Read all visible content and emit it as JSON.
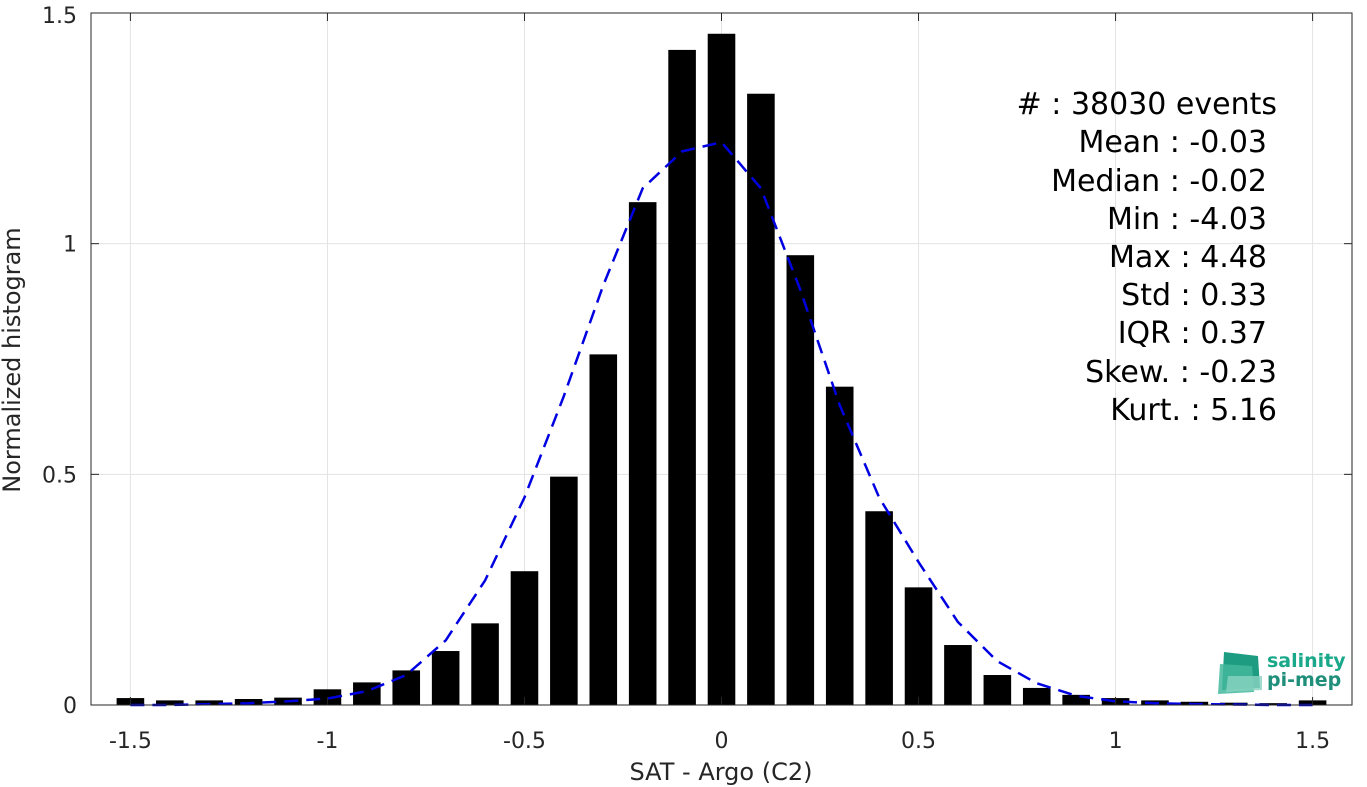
{
  "chart_data": {
    "type": "bar",
    "xlabel": "SAT - Argo (C2)",
    "ylabel": "Normalized histogram",
    "xlim": [
      -1.6,
      1.6
    ],
    "ylim": [
      0,
      1.5
    ],
    "grid": true,
    "xticks": [
      -1.5,
      -1,
      -0.5,
      0,
      0.5,
      1,
      1.5
    ],
    "xtick_labels": [
      "-1.5",
      "-1",
      "-0.5",
      "0",
      "0.5",
      "1",
      "1.5"
    ],
    "yticks": [
      0,
      0.5,
      1,
      1.5
    ],
    "ytick_labels": [
      "0",
      "0.5",
      "1",
      "1.5"
    ],
    "bar_color": "#000000",
    "bar_width": 0.07,
    "bins": [
      -1.5,
      -1.4,
      -1.3,
      -1.2,
      -1.1,
      -1.0,
      -0.9,
      -0.8,
      -0.7,
      -0.6,
      -0.5,
      -0.4,
      -0.3,
      -0.2,
      -0.1,
      0.0,
      0.1,
      0.2,
      0.3,
      0.4,
      0.5,
      0.6,
      0.7,
      0.8,
      0.9,
      1.0,
      1.1,
      1.2,
      1.3,
      1.4,
      1.5
    ],
    "values": [
      0.015,
      0.01,
      0.01,
      0.013,
      0.016,
      0.034,
      0.049,
      0.075,
      0.117,
      0.177,
      0.29,
      0.495,
      0.76,
      1.09,
      1.42,
      1.455,
      1.325,
      0.975,
      0.69,
      0.42,
      0.255,
      0.13,
      0.065,
      0.037,
      0.022,
      0.015,
      0.01,
      0.007,
      0.005,
      0.004,
      0.01
    ],
    "fit": {
      "color": "#0000e0",
      "style": "dashed",
      "x": [
        -1.5,
        -1.4,
        -1.3,
        -1.2,
        -1.1,
        -1.0,
        -0.9,
        -0.8,
        -0.7,
        -0.6,
        -0.5,
        -0.4,
        -0.3,
        -0.2,
        -0.1,
        0.0,
        0.1,
        0.2,
        0.3,
        0.4,
        0.5,
        0.6,
        0.7,
        0.8,
        0.9,
        1.0,
        1.1,
        1.2,
        1.3,
        1.4,
        1.5
      ],
      "y": [
        0.0,
        0.0,
        0.002,
        0.004,
        0.008,
        0.014,
        0.03,
        0.065,
        0.14,
        0.27,
        0.45,
        0.67,
        0.91,
        1.12,
        1.2,
        1.22,
        1.12,
        0.9,
        0.65,
        0.45,
        0.31,
        0.18,
        0.095,
        0.047,
        0.02,
        0.008,
        0.004,
        0.002,
        0.001,
        0.0,
        0.0
      ]
    }
  },
  "stats": [
    "#  : 38030 events",
    "Mean : -0.03",
    "Median : -0.02",
    "Min : -4.03",
    "Max : 4.48",
    "Std : 0.33",
    "IQR : 0.37",
    "Skew. : -0.23",
    "Kurt. : 5.16"
  ],
  "logo": {
    "line1": "salinity",
    "line2": "pi-mep",
    "color1": "#1aa88a",
    "color2": "#1f8f7a"
  }
}
